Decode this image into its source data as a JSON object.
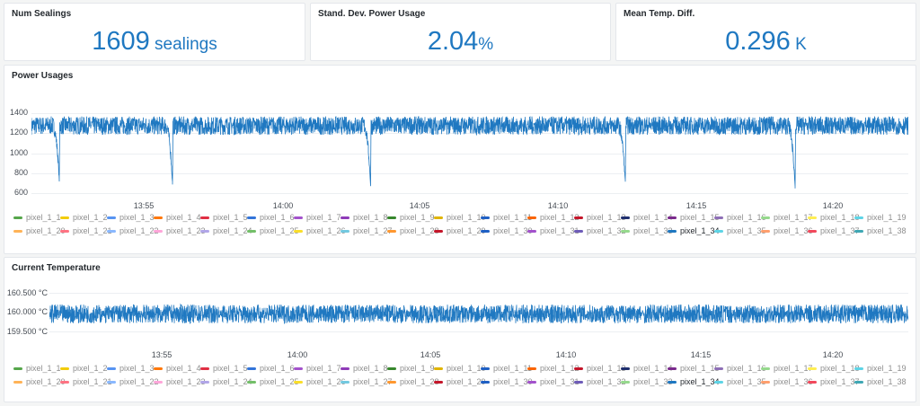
{
  "stats": [
    {
      "title": "Num Sealings",
      "value": "1609",
      "unit": " sealings"
    },
    {
      "title": "Stand. Dev. Power Usage",
      "value": "2.04",
      "unit": "%"
    },
    {
      "title": "Mean Temp. Diff.",
      "value": "0.296",
      "unit": " K"
    }
  ],
  "power_panel": {
    "title": "Power Usages",
    "y_ticks": [
      "1400",
      "1200",
      "1000",
      "800",
      "600"
    ],
    "x_ticks": [
      "13:55",
      "14:00",
      "14:05",
      "14:10",
      "14:15",
      "14:20"
    ]
  },
  "temp_panel": {
    "title": "Current Temperature",
    "y_ticks": [
      "160.500 °C",
      "160.000 °C",
      "159.500 °C"
    ],
    "x_ticks": [
      "13:55",
      "14:00",
      "14:05",
      "14:10",
      "14:15",
      "14:20"
    ]
  },
  "legend": {
    "active_item": "pixel_1_34",
    "items": [
      {
        "label": "pixel_1_1",
        "color": "#56a64b"
      },
      {
        "label": "pixel_1_2",
        "color": "#f2cc0c"
      },
      {
        "label": "pixel_1_3",
        "color": "#5794f2"
      },
      {
        "label": "pixel_1_4",
        "color": "#ff780a"
      },
      {
        "label": "pixel_1_5",
        "color": "#e02f44"
      },
      {
        "label": "pixel_1_6",
        "color": "#3274d9"
      },
      {
        "label": "pixel_1_7",
        "color": "#a352cc"
      },
      {
        "label": "pixel_1_8",
        "color": "#8f3bb8"
      },
      {
        "label": "pixel_1_9",
        "color": "#37872d"
      },
      {
        "label": "pixel_1_10",
        "color": "#e0b400"
      },
      {
        "label": "pixel_1_11",
        "color": "#1f60c4"
      },
      {
        "label": "pixel_1_12",
        "color": "#fa6400"
      },
      {
        "label": "pixel_1_13",
        "color": "#c4162a"
      },
      {
        "label": "pixel_1_14",
        "color": "#1f2f6e"
      },
      {
        "label": "pixel_1_15",
        "color": "#7a2a8c"
      },
      {
        "label": "pixel_1_16",
        "color": "#8e6fb6"
      },
      {
        "label": "pixel_1_17",
        "color": "#96d98d"
      },
      {
        "label": "pixel_1_18",
        "color": "#ffee52"
      },
      {
        "label": "pixel_1_19",
        "color": "#5ed4e6"
      },
      {
        "label": "pixel_1_20",
        "color": "#ffb357"
      },
      {
        "label": "pixel_1_21",
        "color": "#ff7383"
      },
      {
        "label": "pixel_1_22",
        "color": "#8ab8ff"
      },
      {
        "label": "pixel_1_23",
        "color": "#ffa6d9"
      },
      {
        "label": "pixel_1_24",
        "color": "#b1a6e8"
      },
      {
        "label": "pixel_1_25",
        "color": "#73bf69"
      },
      {
        "label": "pixel_1_26",
        "color": "#fade2a"
      },
      {
        "label": "pixel_1_27",
        "color": "#73c9e0"
      },
      {
        "label": "pixel_1_28",
        "color": "#ff9830"
      },
      {
        "label": "pixel_1_29",
        "color": "#c4162a"
      },
      {
        "label": "pixel_1_30",
        "color": "#1f60c4"
      },
      {
        "label": "pixel_1_31",
        "color": "#a352cc"
      },
      {
        "label": "pixel_1_32",
        "color": "#6e5cb8"
      },
      {
        "label": "pixel_1_33",
        "color": "#96d98d"
      },
      {
        "label": "pixel_1_34",
        "color": "#1f78c1"
      },
      {
        "label": "pixel_1_35",
        "color": "#5ed4e6"
      },
      {
        "label": "pixel_1_36",
        "color": "#ff9f6e"
      },
      {
        "label": "pixel_1_37",
        "color": "#f2495c"
      },
      {
        "label": "pixel_1_38",
        "color": "#3fa7b4"
      }
    ]
  },
  "chart_data": [
    {
      "type": "line",
      "title": "Power Usages",
      "x_range": [
        "13:52",
        "14:23"
      ],
      "x_ticks": [
        "13:55",
        "14:00",
        "14:05",
        "14:10",
        "14:15",
        "14:20"
      ],
      "ylim": [
        600,
        1500
      ],
      "y_ticks": [
        600,
        800,
        1000,
        1200,
        1400
      ],
      "grid": true,
      "legend": "bottom",
      "series": [
        {
          "name": "pixel_1_34",
          "color": "#1f78c1",
          "baseline": 1270,
          "noise_amplitude": 110,
          "dips": [
            {
              "t": "13:53",
              "min": 680
            },
            {
              "t": "13:57",
              "min": 650
            },
            {
              "t": "14:04",
              "min": 650
            },
            {
              "t": "14:13",
              "min": 700
            },
            {
              "t": "14:19",
              "min": 670
            }
          ]
        }
      ]
    },
    {
      "type": "line",
      "title": "Current Temperature",
      "x_range": [
        "13:52",
        "14:23"
      ],
      "x_ticks": [
        "13:55",
        "14:00",
        "14:05",
        "14:10",
        "14:15",
        "14:20"
      ],
      "ylim": [
        159.25,
        160.75
      ],
      "y_ticks": [
        159.5,
        160.0,
        160.5
      ],
      "grid": true,
      "legend": "bottom",
      "series": [
        {
          "name": "pixel_1_34",
          "color": "#1f78c1",
          "baseline": 160.0,
          "noise_amplitude": 0.3
        }
      ]
    }
  ]
}
